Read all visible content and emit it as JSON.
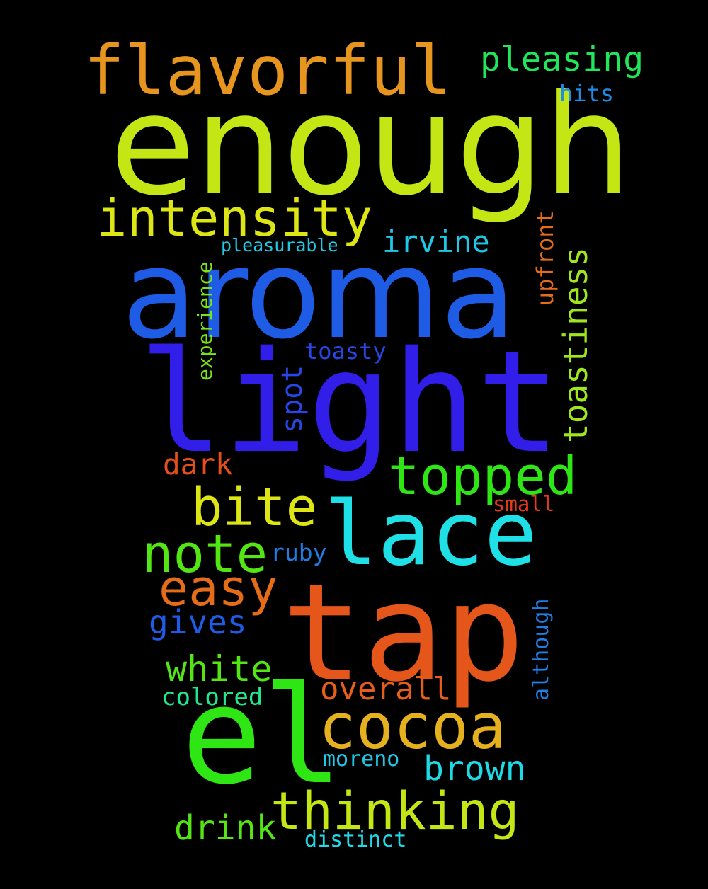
{
  "background": "#000000",
  "words": [
    {
      "key": "enough",
      "text": "enough",
      "color": "#c3e614"
    },
    {
      "key": "aroma",
      "text": "aroma",
      "color": "#1e5ce6"
    },
    {
      "key": "light",
      "text": "light",
      "color": "#311ee8"
    },
    {
      "key": "tap",
      "text": "tap",
      "color": "#e5561a"
    },
    {
      "key": "el",
      "text": "el",
      "color": "#2ee614"
    },
    {
      "key": "lace",
      "text": "lace",
      "color": "#1ee0e6"
    },
    {
      "key": "flavorful",
      "text": "flavorful",
      "color": "#e6951e"
    },
    {
      "key": "intensity",
      "text": "intensity",
      "color": "#dde614"
    },
    {
      "key": "cocoa",
      "text": "cocoa",
      "color": "#e6b11e"
    },
    {
      "key": "thinking",
      "text": "thinking",
      "color": "#c3e614"
    },
    {
      "key": "topped",
      "text": "topped",
      "color": "#2ee614"
    },
    {
      "key": "bite",
      "text": "bite",
      "color": "#dde614"
    },
    {
      "key": "note",
      "text": "note",
      "color": "#53e614"
    },
    {
      "key": "easy",
      "text": "easy",
      "color": "#e56d1a"
    },
    {
      "key": "pleasing",
      "text": "pleasing",
      "color": "#21e65a"
    },
    {
      "key": "toastiness",
      "text": "toastiness",
      "color": "#9fe61e"
    },
    {
      "key": "irvine",
      "text": "irvine",
      "color": "#1ec8e6"
    },
    {
      "key": "white",
      "text": "white",
      "color": "#53e614"
    },
    {
      "key": "gives",
      "text": "gives",
      "color": "#1e5ce6"
    },
    {
      "key": "overall",
      "text": "overall",
      "color": "#e55e1a"
    },
    {
      "key": "brown",
      "text": "brown",
      "color": "#1ed9e6"
    },
    {
      "key": "drink",
      "text": "drink",
      "color": "#53e614"
    },
    {
      "key": "dark",
      "text": "dark",
      "color": "#e5501a"
    },
    {
      "key": "spot",
      "text": "spot",
      "color": "#2746e6"
    },
    {
      "key": "hits",
      "text": "hits",
      "color": "#1e8ce6"
    },
    {
      "key": "upfront",
      "text": "upfront",
      "color": "#e56d1a"
    },
    {
      "key": "experience",
      "text": "experience",
      "color": "#77e614"
    },
    {
      "key": "pleasurable",
      "text": "pleasurable",
      "color": "#1ec8e6"
    },
    {
      "key": "toasty",
      "text": "toasty",
      "color": "#2746e6"
    },
    {
      "key": "small",
      "text": "small",
      "color": "#e53b1a"
    },
    {
      "key": "ruby",
      "text": "ruby",
      "color": "#1e7ee6"
    },
    {
      "key": "although",
      "text": "although",
      "color": "#1e7ee6"
    },
    {
      "key": "colored",
      "text": "colored",
      "color": "#21e68c"
    },
    {
      "key": "moreno",
      "text": "moreno",
      "color": "#1ec8e6"
    },
    {
      "key": "distinct",
      "text": "distinct",
      "color": "#1ed9e6"
    }
  ]
}
